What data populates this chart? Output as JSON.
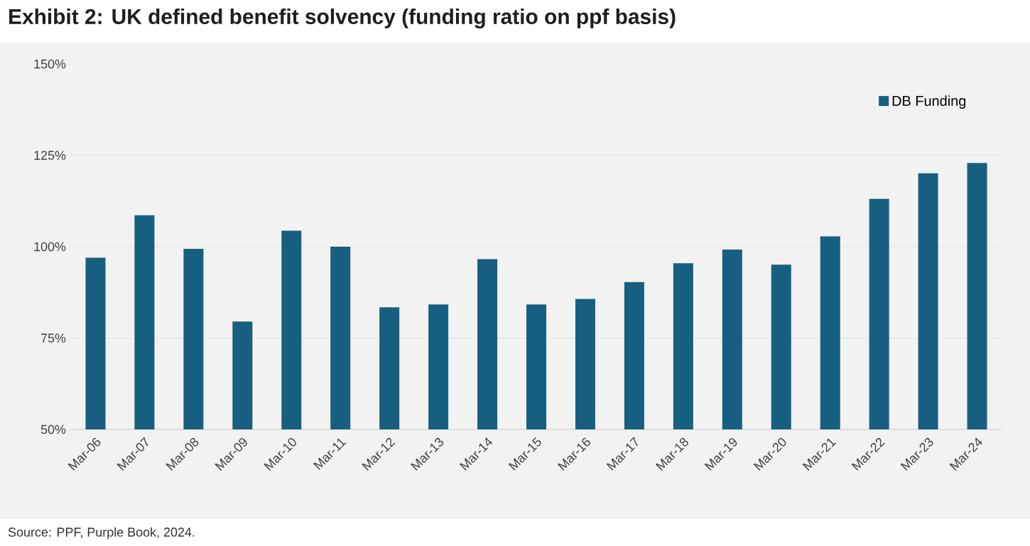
{
  "chart_data": {
    "type": "bar",
    "title": "Exhibit 2: UK defined benefit solvency (funding ratio on ppf basis)",
    "categories": [
      "Mar-06",
      "Mar-07",
      "Mar-08",
      "Mar-09",
      "Mar-10",
      "Mar-11",
      "Mar-12",
      "Mar-13",
      "Mar-14",
      "Mar-15",
      "Mar-16",
      "Mar-17",
      "Mar-18",
      "Mar-19",
      "Mar-20",
      "Mar-21",
      "Mar-22",
      "Mar-23",
      "Mar-24"
    ],
    "series": [
      {
        "name": "DB Funding",
        "color": "#175f80",
        "values": [
          97.0,
          108.6,
          99.4,
          79.5,
          104.4,
          100.0,
          83.4,
          84.2,
          96.6,
          84.2,
          85.7,
          90.3,
          95.5,
          99.2,
          95.1,
          102.8,
          113.1,
          120.1,
          122.9
        ]
      }
    ],
    "ylim": [
      50,
      150
    ],
    "yticks": [
      {
        "value": 50,
        "label": "50%"
      },
      {
        "value": 75,
        "label": "75%"
      },
      {
        "value": 100,
        "label": "100%"
      },
      {
        "value": 125,
        "label": "125%"
      },
      {
        "value": 150,
        "label": "150%"
      }
    ],
    "grid": "y",
    "legend": "top right",
    "annotations": [
      "Source: PPF, Purple Book, 2024."
    ]
  }
}
